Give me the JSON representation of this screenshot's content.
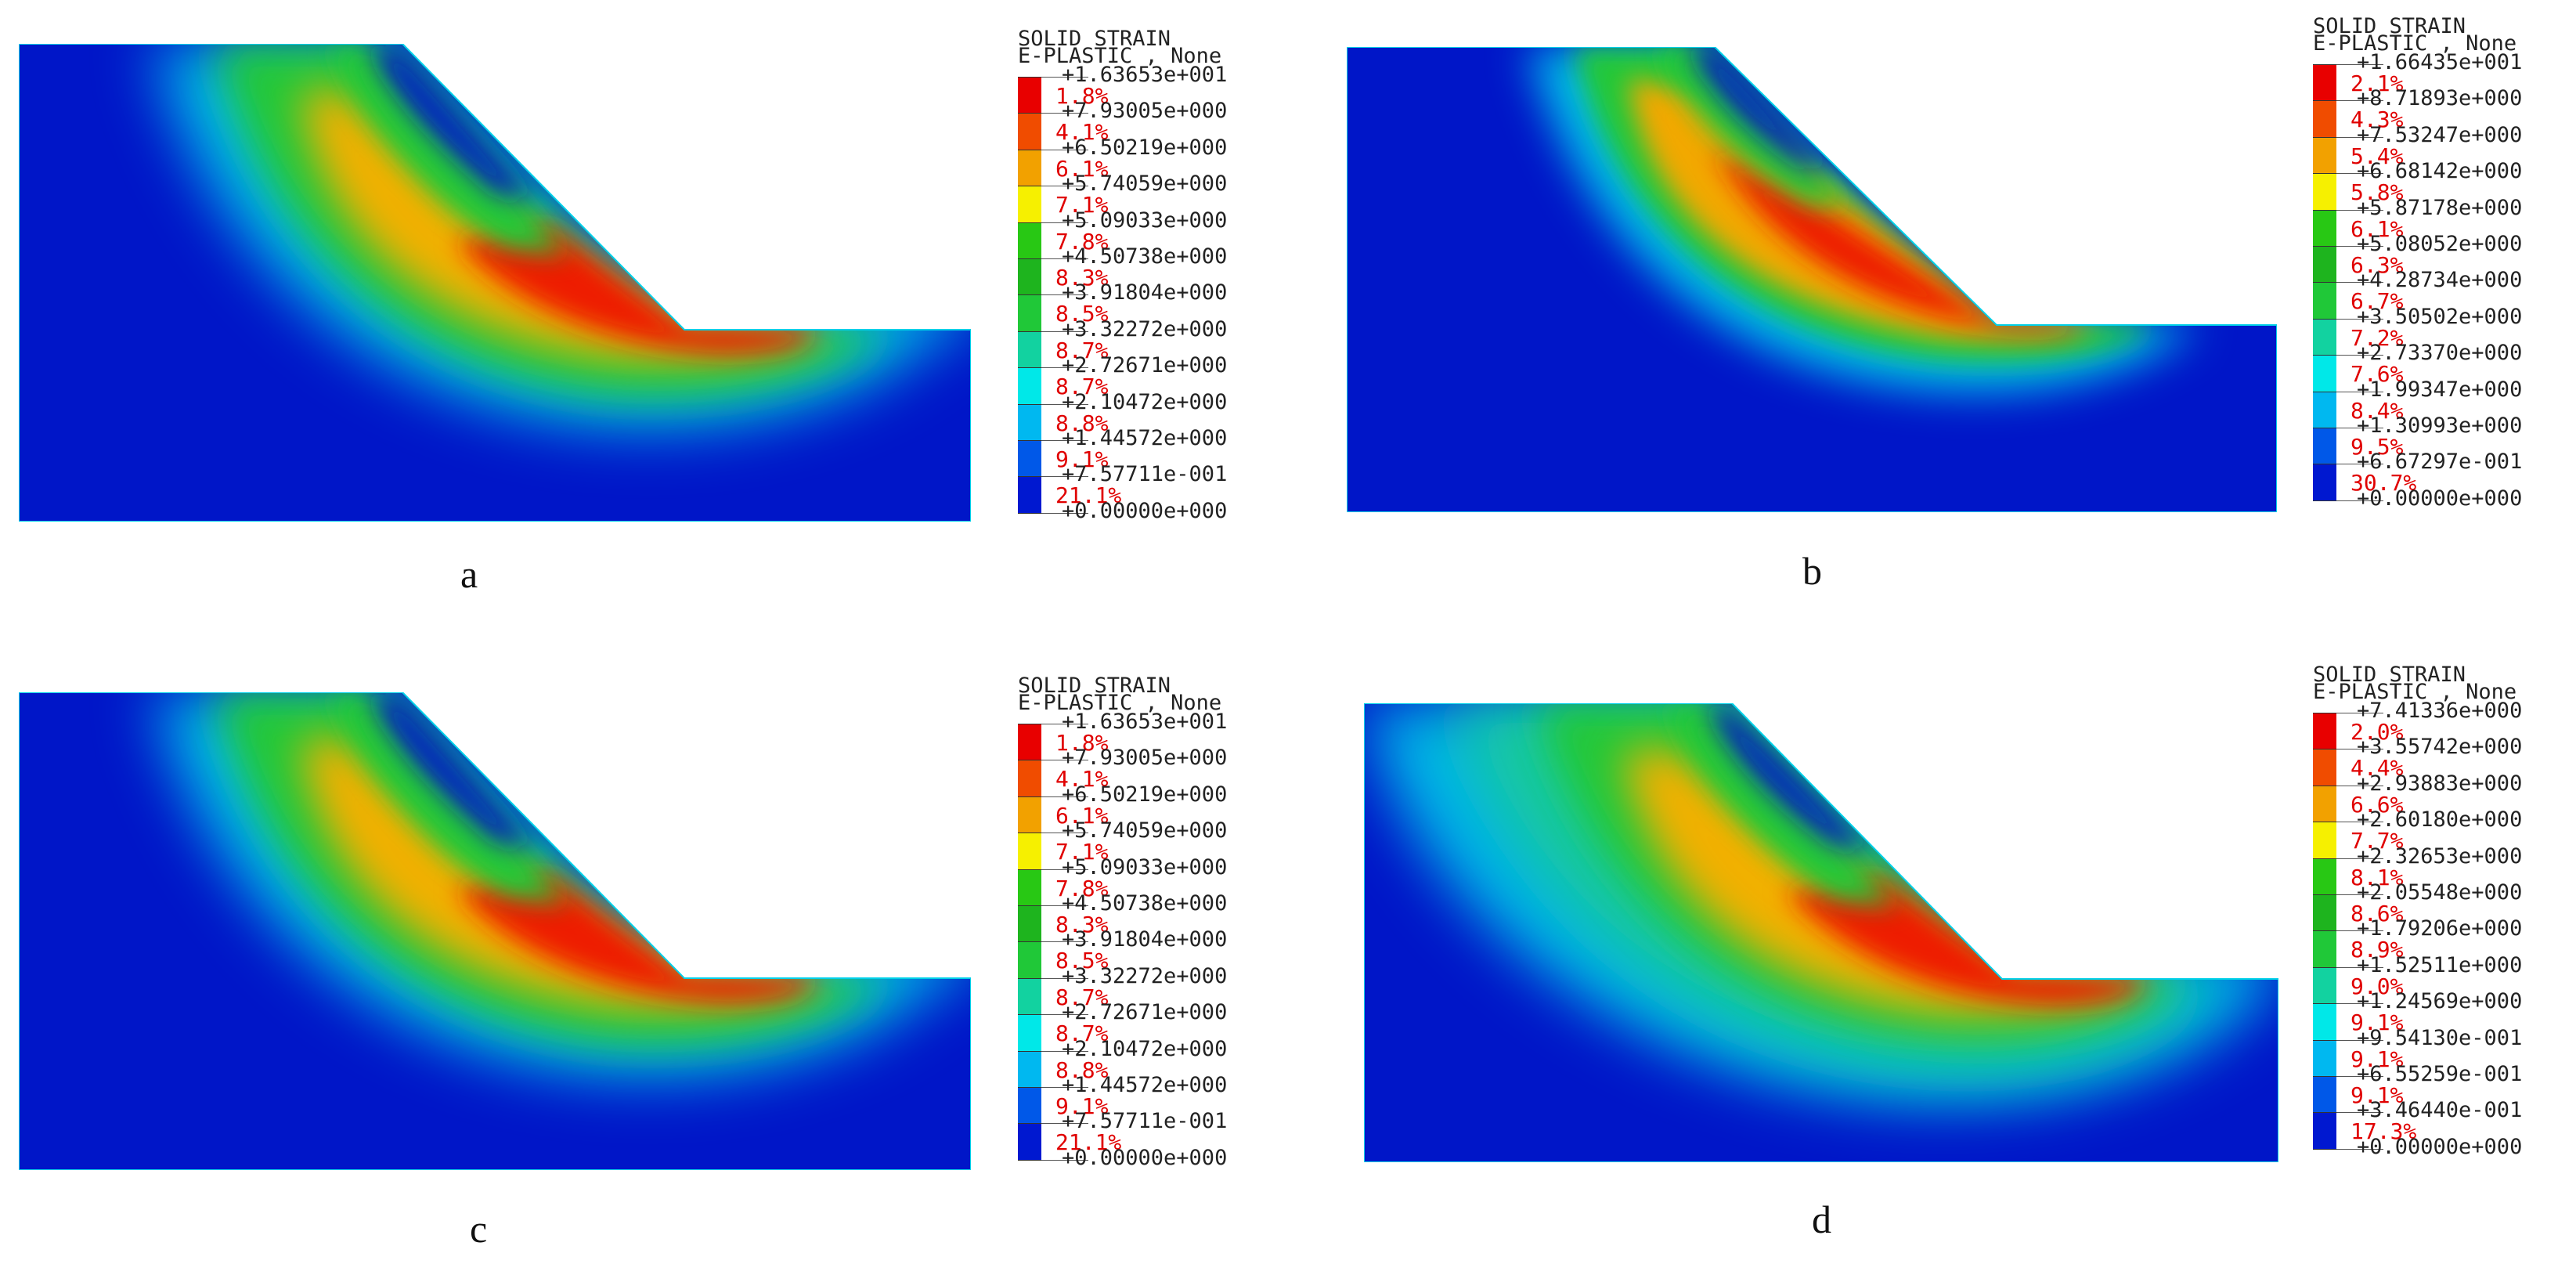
{
  "colors": {
    "background": "#0000cc",
    "scale": [
      "#e80000",
      "#f04c00",
      "#f2a100",
      "#f6f000",
      "#28c814",
      "#1eb41e",
      "#20c838",
      "#12d2a0",
      "#00e8e8",
      "#00b8f0",
      "#0058e8",
      "#0018d0"
    ]
  },
  "panels": [
    {
      "caption": "a",
      "legend": {
        "title_line1": "SOLID STRAIN",
        "title_line2": "E-PLASTIC , None",
        "ticks": [
          "+1.63653e+001",
          "+7.93005e+000",
          "+6.50219e+000",
          "+5.74059e+000",
          "+5.09033e+000",
          "+4.50738e+000",
          "+3.91804e+000",
          "+3.32272e+000",
          "+2.72671e+000",
          "+2.10472e+000",
          "+1.44572e+000",
          "+7.57711e-001",
          "+0.00000e+000"
        ],
        "percents": [
          "1.8%",
          "4.1%",
          "6.1%",
          "7.1%",
          "7.8%",
          "8.3%",
          "8.5%",
          "8.7%",
          "8.7%",
          "8.8%",
          "9.1%",
          "21.1%"
        ]
      }
    },
    {
      "caption": "b",
      "legend": {
        "title_line1": "SOLID STRAIN",
        "title_line2": "E-PLASTIC , None",
        "ticks": [
          "+1.66435e+001",
          "+8.71893e+000",
          "+7.53247e+000",
          "+6.68142e+000",
          "+5.87178e+000",
          "+5.08052e+000",
          "+4.28734e+000",
          "+3.50502e+000",
          "+2.73370e+000",
          "+1.99347e+000",
          "+1.30993e+000",
          "+6.67297e-001",
          "+0.00000e+000"
        ],
        "percents": [
          "2.1%",
          "4.3%",
          "5.4%",
          "5.8%",
          "6.1%",
          "6.3%",
          "6.7%",
          "7.2%",
          "7.6%",
          "8.4%",
          "9.5%",
          "30.7%"
        ]
      }
    },
    {
      "caption": "c",
      "legend": {
        "title_line1": "SOLID STRAIN",
        "title_line2": "E-PLASTIC , None",
        "ticks": [
          "+1.63653e+001",
          "+7.93005e+000",
          "+6.50219e+000",
          "+5.74059e+000",
          "+5.09033e+000",
          "+4.50738e+000",
          "+3.91804e+000",
          "+3.32272e+000",
          "+2.72671e+000",
          "+2.10472e+000",
          "+1.44572e+000",
          "+7.57711e-001",
          "+0.00000e+000"
        ],
        "percents": [
          "1.8%",
          "4.1%",
          "6.1%",
          "7.1%",
          "7.8%",
          "8.3%",
          "8.5%",
          "8.7%",
          "8.7%",
          "8.8%",
          "9.1%",
          "21.1%"
        ]
      }
    },
    {
      "caption": "d",
      "legend": {
        "title_line1": "SOLID STRAIN",
        "title_line2": "E-PLASTIC , None",
        "ticks": [
          "+7.41336e+000",
          "+3.55742e+000",
          "+2.93883e+000",
          "+2.60180e+000",
          "+2.32653e+000",
          "+2.05548e+000",
          "+1.79206e+000",
          "+1.52511e+000",
          "+1.24569e+000",
          "+9.54130e-001",
          "+6.55259e-001",
          "+3.46440e-001",
          "+0.00000e+000"
        ],
        "percents": [
          "2.0%",
          "4.4%",
          "6.6%",
          "7.7%",
          "8.1%",
          "8.6%",
          "8.9%",
          "9.0%",
          "9.1%",
          "9.1%",
          "9.1%",
          "17.3%"
        ]
      }
    }
  ]
}
